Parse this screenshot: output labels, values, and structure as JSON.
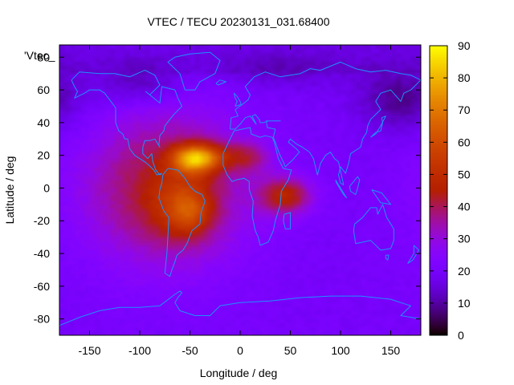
{
  "chart_data": {
    "type": "heatmap",
    "title": "VTEC / TECU 20230131_031.68400",
    "xlabel": "Longitude / deg",
    "ylabel": "Latitude / deg",
    "key_label": "'Vtec_",
    "xlim": [
      -180,
      180
    ],
    "ylim": [
      -90,
      87.5
    ],
    "xticks": [
      -150,
      -100,
      -50,
      0,
      50,
      100,
      150
    ],
    "yticks": [
      -80,
      -60,
      -40,
      -20,
      0,
      20,
      40,
      60,
      80
    ],
    "colorbar": {
      "min": 0,
      "max": 90,
      "ticks": [
        0,
        10,
        20,
        30,
        40,
        50,
        60,
        70,
        80,
        90
      ],
      "palette": "gnuplot-rgbformulae-7-5-15"
    },
    "grid_resolution": {
      "dlon": 5,
      "dlat": 2.5
    },
    "field_features": [
      {
        "name": "equatorial-anomaly-north-crest",
        "lon": -45,
        "lat": 18,
        "peak_tec": 88
      },
      {
        "name": "equatorial-anomaly-south-crest",
        "lon": -50,
        "lat": -15,
        "peak_tec": 62
      },
      {
        "name": "eastern-tongue",
        "lon": 45,
        "lat": -5,
        "peak_tec": 48
      },
      {
        "name": "background",
        "tec": 20
      },
      {
        "name": "polar-minimum",
        "tec": 6
      }
    ]
  }
}
